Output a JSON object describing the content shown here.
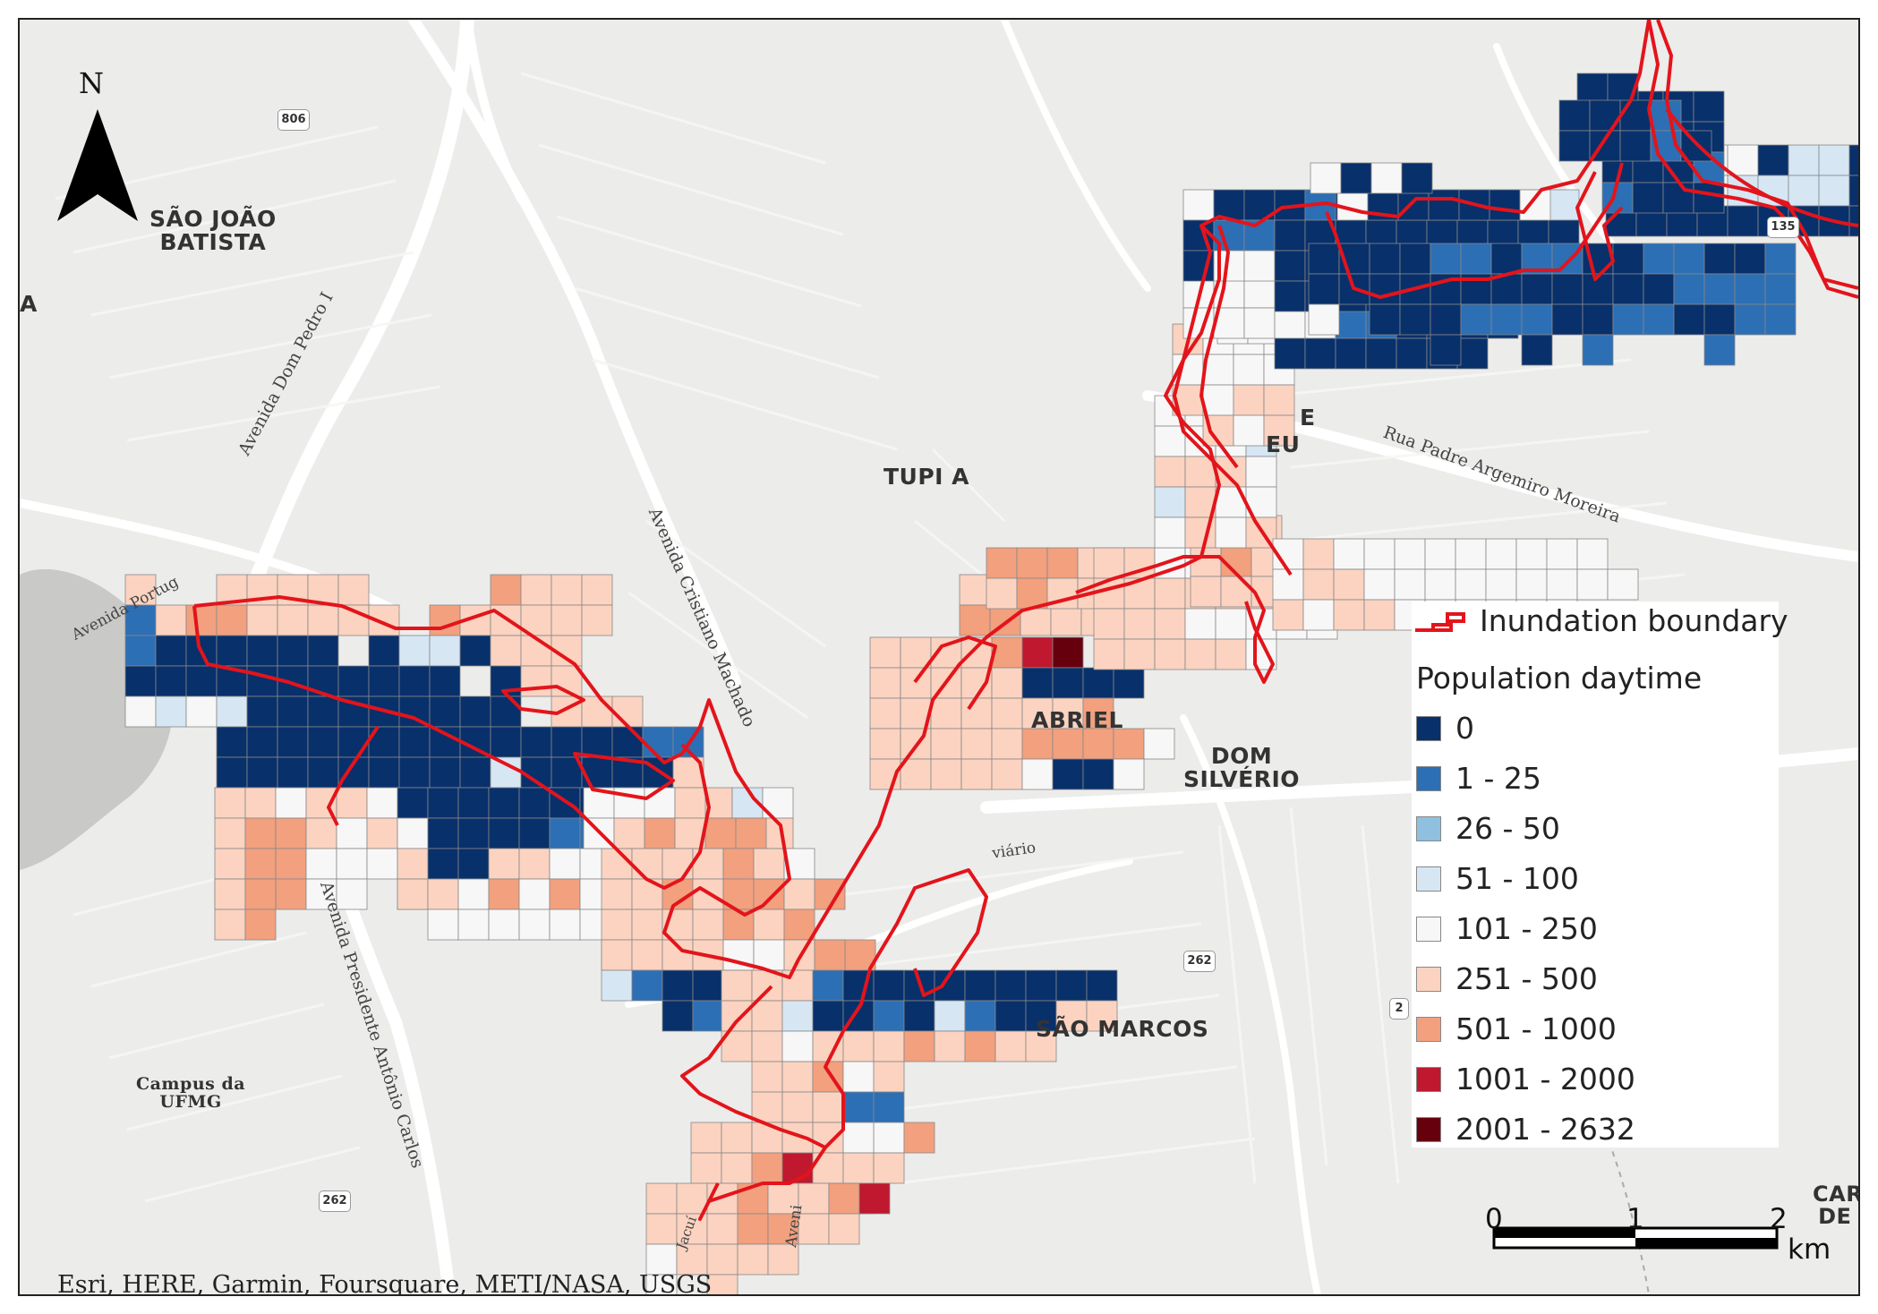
{
  "north": {
    "letter": "N"
  },
  "places": {
    "sao_joao_batista": "SÃO JOÃO\nBATISTA",
    "tupi_a": "TUPI A",
    "gabriel": "ABRIEL",
    "dom_silverio": "DOM\nSILVÉRIO",
    "sao_marcos": "SÃO MARCOS",
    "campus": "Campus da\nUFMG",
    "carv": "CARV\nDE E",
    "partial_e": "E",
    "partial_eu": "EU",
    "partial_a": "A"
  },
  "roads": {
    "dom_pedro": "Avenida Dom Pedro I",
    "cristiano": "Avenida Cristiano Machado",
    "presidente": "Avenida Presidente Antônio Carlos",
    "padre": "Rua Padre Argemiro Moreira",
    "portugal": "Avenida Portug",
    "viario": "viário",
    "jacui": "Jacuí",
    "aveni": "Aveni"
  },
  "shields": {
    "s806": "806",
    "s262a": "262",
    "s262b": "262",
    "s135": "135",
    "s2": "2"
  },
  "legend": {
    "boundary_label": "Inundation boundary",
    "title": "Population daytime",
    "classes": [
      {
        "label": "0",
        "color": "#08306b"
      },
      {
        "label": "1 - 25",
        "color": "#2c6fb5"
      },
      {
        "label": "26 - 50",
        "color": "#8fc0df"
      },
      {
        "label": "51 - 100",
        "color": "#d6e6f3"
      },
      {
        "label": "101 - 250",
        "color": "#f7f7f7"
      },
      {
        "label": "251 - 500",
        "color": "#fbd3c0"
      },
      {
        "label": "501 - 1000",
        "color": "#f2a07e"
      },
      {
        "label": "1001 - 2000",
        "color": "#c0182f"
      },
      {
        "label": "2001 - 2632",
        "color": "#67000d"
      }
    ]
  },
  "scale": {
    "labels": [
      "0",
      "1",
      "2"
    ],
    "unit": "km"
  },
  "attribution": "Esri, HERE, Garmin, Foursquare, METI/NASA, USGS",
  "colors": {
    "boundary": "#e3141b"
  }
}
